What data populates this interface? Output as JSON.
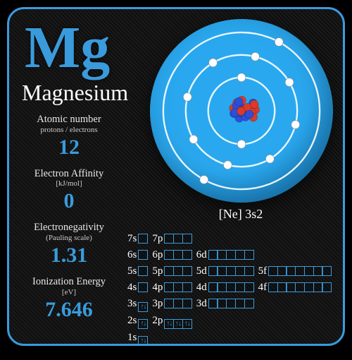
{
  "colors": {
    "accent": "#3a9bdc",
    "disc": "#2aa8ef",
    "background": "#141414",
    "text": "#ffffff"
  },
  "element": {
    "symbol": "Mg",
    "name": "Magnesium",
    "electron_config": "[Ne] 3s2"
  },
  "properties": [
    {
      "label": "Atomic number",
      "sub": "protons / electrons",
      "value": "12"
    },
    {
      "label": "Electron Affinity",
      "sub": "[kJ/mol]",
      "value": "0"
    },
    {
      "label": "Electronegativity",
      "sub": "(Pauling scale)",
      "value": "1.31"
    },
    {
      "label": "Ionization Energy",
      "sub": "[eV]",
      "value": "7.646"
    }
  ],
  "atom": {
    "shells": [
      2,
      8,
      2
    ],
    "ring_radii": [
      40,
      67,
      94
    ],
    "nucleus_radius": 18,
    "electron_radius": 5,
    "ring_color": "#ffffff",
    "electron_color": "#ffffff",
    "proton_color": "#d93a2b",
    "neutron_color": "#2b4fd9"
  },
  "orbitals": {
    "box_border": "#3a9bdc",
    "rows": [
      [
        {
          "l": "7s",
          "n": 1,
          "f": []
        },
        {
          "l": "7p",
          "n": 3,
          "f": []
        }
      ],
      [
        {
          "l": "6s",
          "n": 1,
          "f": []
        },
        {
          "l": "6p",
          "n": 3,
          "f": []
        },
        {
          "l": "6d",
          "n": 5,
          "f": []
        }
      ],
      [
        {
          "l": "5s",
          "n": 1,
          "f": []
        },
        {
          "l": "5p",
          "n": 3,
          "f": []
        },
        {
          "l": "5d",
          "n": 5,
          "f": []
        },
        {
          "l": "5f",
          "n": 7,
          "f": []
        }
      ],
      [
        {
          "l": "4s",
          "n": 1,
          "f": []
        },
        {
          "l": "4p",
          "n": 3,
          "f": []
        },
        {
          "l": "4d",
          "n": 5,
          "f": []
        },
        {
          "l": "4f",
          "n": 7,
          "f": []
        }
      ],
      [
        {
          "l": "3s",
          "n": 1,
          "f": [
            2
          ]
        },
        {
          "l": "3p",
          "n": 3,
          "f": []
        },
        {
          "l": "3d",
          "n": 5,
          "f": []
        }
      ],
      [
        {
          "l": "2s",
          "n": 1,
          "f": [
            2
          ]
        },
        {
          "l": "2p",
          "n": 3,
          "f": [
            2,
            2,
            2
          ]
        }
      ],
      [
        {
          "l": "1s",
          "n": 1,
          "f": [
            2
          ]
        }
      ]
    ]
  }
}
